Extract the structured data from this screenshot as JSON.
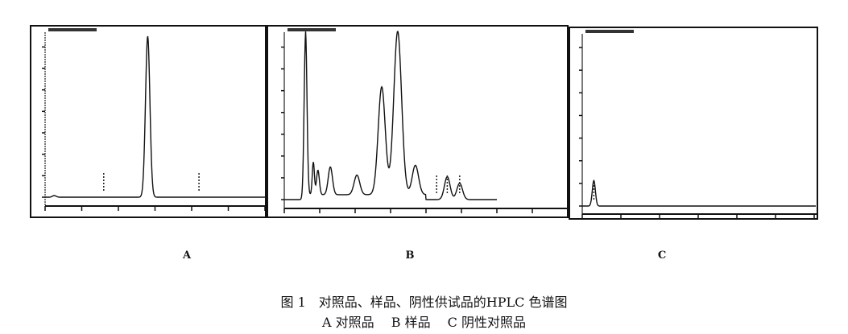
{
  "chart_data": [
    {
      "type": "line",
      "panel_label": "A",
      "grid": false,
      "x_ticks": 7,
      "peaks": [
        {
          "x": 2.8,
          "height": 1.0,
          "width": 0.06
        },
        {
          "x": 0.25,
          "height": 0.01,
          "width": 0.05
        }
      ],
      "markers": [
        1.6,
        4.2
      ]
    },
    {
      "type": "line",
      "panel_label": "B",
      "grid": false,
      "x_ticks": 9,
      "peaks": [
        {
          "x": 0.6,
          "height": 1.0,
          "width": 0.04
        },
        {
          "x": 0.82,
          "height": 0.2,
          "width": 0.03
        },
        {
          "x": 0.95,
          "height": 0.15,
          "width": 0.04
        },
        {
          "x": 1.3,
          "height": 0.17,
          "width": 0.06
        },
        {
          "x": 2.05,
          "height": 0.12,
          "width": 0.08
        },
        {
          "x": 2.75,
          "height": 0.66,
          "width": 0.1
        },
        {
          "x": 3.2,
          "height": 1.0,
          "width": 0.11
        },
        {
          "x": 3.7,
          "height": 0.18,
          "width": 0.09
        },
        {
          "x": 4.6,
          "height": 0.14,
          "width": 0.08
        },
        {
          "x": 4.95,
          "height": 0.1,
          "width": 0.08
        }
      ],
      "markers": [
        4.3,
        4.6,
        4.95
      ]
    },
    {
      "type": "line",
      "panel_label": "C",
      "grid": false,
      "x_ticks": 7,
      "peaks": [
        {
          "x": 0.3,
          "height": 0.15,
          "width": 0.04
        }
      ],
      "markers": [
        0.3
      ]
    }
  ],
  "labels": {
    "a": "A",
    "b": "B",
    "c": "C"
  },
  "caption": {
    "line1": "图 1　对照品、样品、阴性供试品的HPLC 色谱图",
    "line2": [
      "A 对照品",
      "B 样品",
      "C 阴性对照品"
    ]
  }
}
